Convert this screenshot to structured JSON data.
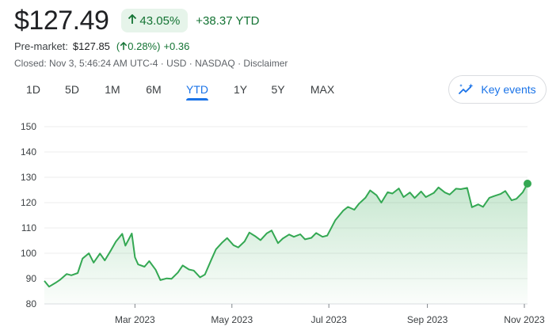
{
  "quote": {
    "price": "$127.49",
    "pct_change": "43.05%",
    "abs_change": "+38.37 YTD",
    "premarket_label": "Pre-market:",
    "premarket_price": "$127.85",
    "premarket_pct": "0.28%",
    "premarket_abs": "+0.36",
    "closed_info": "Closed: Nov 3, 5:46:24 AM UTC-4 · USD · NASDAQ · Disclaimer"
  },
  "tabs": [
    {
      "label": "1D"
    },
    {
      "label": "5D"
    },
    {
      "label": "1M"
    },
    {
      "label": "6M"
    },
    {
      "label": "YTD",
      "active": true
    },
    {
      "label": "1Y"
    },
    {
      "label": "5Y"
    },
    {
      "label": "MAX"
    }
  ],
  "key_events": {
    "label": "Key events",
    "icon": "trend-sparkle-icon"
  },
  "colors": {
    "up": "#137333",
    "line": "#34a853",
    "accent": "#1a73e8"
  },
  "chart_data": {
    "type": "area",
    "title": "",
    "xlabel": "",
    "ylabel": "",
    "ylim": [
      80,
      150
    ],
    "yticks": [
      80,
      90,
      100,
      110,
      120,
      130,
      140,
      150
    ],
    "xticks": [
      "Mar 2023",
      "May 2023",
      "Jul 2023",
      "Sep 2023",
      "Nov 2023"
    ],
    "xtick_dates": [
      "2023-03-01",
      "2023-05-01",
      "2023-07-01",
      "2023-09-01",
      "2023-11-01"
    ],
    "xlim": [
      "2023-01-03",
      "2023-11-03"
    ],
    "grid": true,
    "series": [
      {
        "points": [
          [
            "2023-01-03",
            89.1
          ],
          [
            "2023-01-06",
            86.8
          ],
          [
            "2023-01-10",
            88.3
          ],
          [
            "2023-01-13",
            89.6
          ],
          [
            "2023-01-17",
            91.8
          ],
          [
            "2023-01-20",
            91.3
          ],
          [
            "2023-01-24",
            92.2
          ],
          [
            "2023-01-27",
            97.9
          ],
          [
            "2023-01-31",
            100.0
          ],
          [
            "2023-02-03",
            96.3
          ],
          [
            "2023-02-07",
            99.9
          ],
          [
            "2023-02-10",
            97.2
          ],
          [
            "2023-02-14",
            101.3
          ],
          [
            "2023-02-17",
            104.6
          ],
          [
            "2023-02-21",
            107.7
          ],
          [
            "2023-02-23",
            103.0
          ],
          [
            "2023-02-27",
            107.8
          ],
          [
            "2023-03-01",
            98.4
          ],
          [
            "2023-03-03",
            95.6
          ],
          [
            "2023-03-07",
            94.7
          ],
          [
            "2023-03-10",
            96.9
          ],
          [
            "2023-03-14",
            93.5
          ],
          [
            "2023-03-17",
            89.4
          ],
          [
            "2023-03-21",
            90.1
          ],
          [
            "2023-03-24",
            89.9
          ],
          [
            "2023-03-28",
            92.4
          ],
          [
            "2023-03-31",
            95.2
          ],
          [
            "2023-04-04",
            93.6
          ],
          [
            "2023-04-07",
            93.2
          ],
          [
            "2023-04-11",
            90.5
          ],
          [
            "2023-04-14",
            91.6
          ],
          [
            "2023-04-18",
            97.4
          ],
          [
            "2023-04-21",
            101.6
          ],
          [
            "2023-04-25",
            104.3
          ],
          [
            "2023-04-28",
            106.0
          ],
          [
            "2023-05-02",
            103.2
          ],
          [
            "2023-05-05",
            102.3
          ],
          [
            "2023-05-09",
            104.7
          ],
          [
            "2023-05-12",
            108.2
          ],
          [
            "2023-05-16",
            106.6
          ],
          [
            "2023-05-19",
            105.2
          ],
          [
            "2023-05-23",
            107.9
          ],
          [
            "2023-05-26",
            109.0
          ],
          [
            "2023-05-30",
            104.0
          ],
          [
            "2023-06-02",
            105.8
          ],
          [
            "2023-06-06",
            107.4
          ],
          [
            "2023-06-09",
            106.5
          ],
          [
            "2023-06-13",
            107.5
          ],
          [
            "2023-06-16",
            105.5
          ],
          [
            "2023-06-20",
            106.1
          ],
          [
            "2023-06-23",
            108.0
          ],
          [
            "2023-06-27",
            106.5
          ],
          [
            "2023-06-30",
            107.0
          ],
          [
            "2023-07-05",
            113.0
          ],
          [
            "2023-07-10",
            116.8
          ],
          [
            "2023-07-13",
            118.3
          ],
          [
            "2023-07-17",
            117.2
          ],
          [
            "2023-07-20",
            119.6
          ],
          [
            "2023-07-24",
            121.9
          ],
          [
            "2023-07-27",
            124.8
          ],
          [
            "2023-07-31",
            122.9
          ],
          [
            "2023-08-03",
            120.0
          ],
          [
            "2023-08-07",
            124.1
          ],
          [
            "2023-08-10",
            123.6
          ],
          [
            "2023-08-14",
            125.6
          ],
          [
            "2023-08-17",
            122.2
          ],
          [
            "2023-08-21",
            124.0
          ],
          [
            "2023-08-24",
            121.8
          ],
          [
            "2023-08-28",
            124.4
          ],
          [
            "2023-08-31",
            122.2
          ],
          [
            "2023-09-05",
            123.8
          ],
          [
            "2023-09-08",
            126.0
          ],
          [
            "2023-09-12",
            124.0
          ],
          [
            "2023-09-15",
            123.2
          ],
          [
            "2023-09-19",
            125.5
          ],
          [
            "2023-09-22",
            125.3
          ],
          [
            "2023-09-26",
            125.8
          ],
          [
            "2023-09-29",
            118.2
          ],
          [
            "2023-10-03",
            119.3
          ],
          [
            "2023-10-06",
            118.3
          ],
          [
            "2023-10-10",
            121.9
          ],
          [
            "2023-10-13",
            122.6
          ],
          [
            "2023-10-17",
            123.4
          ],
          [
            "2023-10-20",
            124.6
          ],
          [
            "2023-10-24",
            120.9
          ],
          [
            "2023-10-27",
            121.5
          ],
          [
            "2023-10-31",
            124.1
          ],
          [
            "2023-11-03",
            127.5
          ]
        ]
      }
    ]
  }
}
